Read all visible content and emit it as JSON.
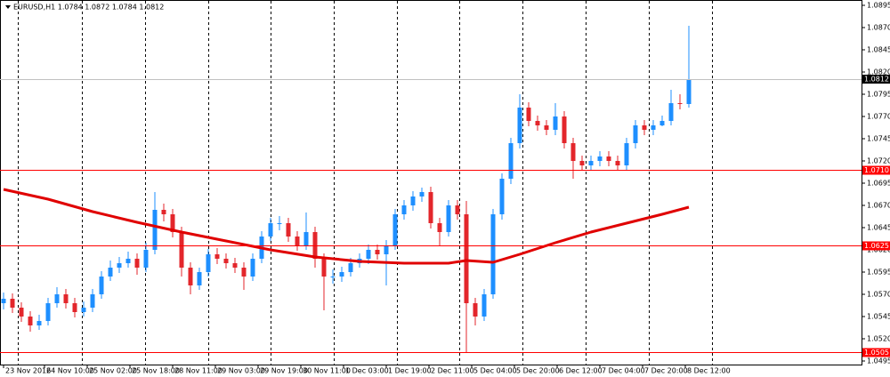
{
  "chart_data": {
    "type": "candlestick",
    "title": "EURUSD,H1  1.0784 1.0872 1.0784 1.0812",
    "xlim": [
      -0.4,
      96.4
    ],
    "ylim": [
      1.0491,
      1.0901
    ],
    "yticks": [
      {
        "value": 1.0895,
        "label": "1.0895"
      },
      {
        "value": 1.087,
        "label": "1.0870"
      },
      {
        "value": 1.0845,
        "label": "1.0845"
      },
      {
        "value": 1.082,
        "label": "1.0820"
      },
      {
        "value": 1.0795,
        "label": "1.0795"
      },
      {
        "value": 1.077,
        "label": "1.0770"
      },
      {
        "value": 1.0745,
        "label": "1.0745"
      },
      {
        "value": 1.072,
        "label": "1.0720"
      },
      {
        "value": 1.0695,
        "label": "1.0695"
      },
      {
        "value": 1.067,
        "label": "1.0670"
      },
      {
        "value": 1.0645,
        "label": "1.0645"
      },
      {
        "value": 1.062,
        "label": "1.0620"
      },
      {
        "value": 1.0595,
        "label": "1.0595"
      },
      {
        "value": 1.057,
        "label": "1.0570"
      },
      {
        "value": 1.0545,
        "label": "1.0545"
      },
      {
        "value": 1.052,
        "label": "1.0520"
      },
      {
        "value": 1.0495,
        "label": "1.0495"
      }
    ],
    "xticks": [
      {
        "value": 0,
        "label": "23 Nov 2016"
      },
      {
        "value": 4.6,
        "label": "24 Nov 10:00"
      },
      {
        "value": 9.4,
        "label": "25 Nov 02:00"
      },
      {
        "value": 14.2,
        "label": "25 Nov 18:00"
      },
      {
        "value": 19,
        "label": "28 Nov 11:00"
      },
      {
        "value": 23.8,
        "label": "29 Nov 03:00"
      },
      {
        "value": 28.6,
        "label": "29 Nov 19:00"
      },
      {
        "value": 33.4,
        "label": "30 Nov 11:00"
      },
      {
        "value": 38.2,
        "label": "1 Dec 03:00"
      },
      {
        "value": 43,
        "label": "1 Dec 19:00"
      },
      {
        "value": 47.8,
        "label": "2 Dec 11:00"
      },
      {
        "value": 52.6,
        "label": "5 Dec 04:00"
      },
      {
        "value": 57.4,
        "label": "5 Dec 20:00"
      },
      {
        "value": 62.2,
        "label": "6 Dec 12:00"
      },
      {
        "value": 67,
        "label": "7 Dec 04:00"
      },
      {
        "value": 71.8,
        "label": "7 Dec 20:00"
      },
      {
        "value": 76.6,
        "label": "8 Dec 12:00"
      }
    ],
    "day_separators": [
      1.6,
      8.8,
      15.9,
      23,
      30,
      37.1,
      44.2,
      51.2,
      58.3,
      65.4,
      72.5,
      79.6
    ],
    "up_color": "#1e8fff",
    "down_color": "#e3262b",
    "open": [
      1.056,
      1.0565,
      1.0555,
      1.0545,
      1.0535,
      1.054,
      1.056,
      1.057,
      1.056,
      1.055,
      1.0555,
      1.057,
      1.059,
      1.06,
      1.0605,
      1.061,
      1.06,
      1.062,
      1.0665,
      1.066,
      1.064,
      1.06,
      1.058,
      1.0595,
      1.0615,
      1.061,
      1.0605,
      1.06,
      1.059,
      1.061,
      1.0635,
      1.065,
      1.065,
      1.0635,
      1.0625,
      1.064,
      1.061,
      1.059,
      1.059,
      1.0595,
      1.0605,
      1.061,
      1.062,
      1.0615,
      1.0625,
      1.066,
      1.067,
      1.068,
      1.0685,
      1.065,
      1.064,
      1.067,
      1.066,
      1.056,
      1.0545,
      1.057,
      1.066,
      1.07,
      1.074,
      1.078,
      1.0765,
      1.076,
      1.0755,
      1.077,
      1.074,
      1.072,
      1.0715,
      1.072,
      1.0725,
      1.072,
      1.0715,
      1.074,
      1.076,
      1.0755,
      1.076,
      1.0765,
      1.0785,
      1.0784
    ],
    "high": [
      1.0572,
      1.0571,
      1.0561,
      1.0551,
      1.0547,
      1.0566,
      1.0578,
      1.0576,
      1.0566,
      1.0562,
      1.0576,
      1.0596,
      1.0608,
      1.0612,
      1.0618,
      1.0616,
      1.0628,
      1.0685,
      1.0672,
      1.0666,
      1.0646,
      1.0606,
      1.06,
      1.0621,
      1.0622,
      1.0616,
      1.0611,
      1.0606,
      1.0616,
      1.0641,
      1.0656,
      1.0658,
      1.0656,
      1.0641,
      1.0662,
      1.0646,
      1.0616,
      1.0598,
      1.0601,
      1.0611,
      1.0616,
      1.0626,
      1.0626,
      1.0631,
      1.0666,
      1.0676,
      1.0686,
      1.069,
      1.0691,
      1.0656,
      1.0676,
      1.0676,
      1.0675,
      1.0566,
      1.0576,
      1.0666,
      1.0706,
      1.0746,
      1.0795,
      1.0786,
      1.0771,
      1.0766,
      1.0785,
      1.0776,
      1.0746,
      1.0726,
      1.0726,
      1.0731,
      1.0731,
      1.0726,
      1.0746,
      1.0766,
      1.0766,
      1.0766,
      1.0771,
      1.08,
      1.0795,
      1.0872
    ],
    "low": [
      1.0553,
      1.0549,
      1.0539,
      1.0528,
      1.053,
      1.0535,
      1.0555,
      1.0554,
      1.0544,
      1.0545,
      1.055,
      1.0565,
      1.0585,
      1.0594,
      1.06,
      1.0592,
      1.0595,
      1.0615,
      1.0652,
      1.0634,
      1.059,
      1.057,
      1.0575,
      1.059,
      1.0604,
      1.0599,
      1.0594,
      1.0575,
      1.0585,
      1.0605,
      1.063,
      1.0642,
      1.0629,
      1.0619,
      1.062,
      1.06,
      1.0552,
      1.0582,
      1.0584,
      1.059,
      1.06,
      1.0604,
      1.0609,
      1.058,
      1.062,
      1.0654,
      1.0664,
      1.0674,
      1.0644,
      1.0625,
      1.0635,
      1.0654,
      1.0505,
      1.0535,
      1.054,
      1.0565,
      1.0654,
      1.0694,
      1.0734,
      1.0759,
      1.0754,
      1.0749,
      1.0749,
      1.0734,
      1.07,
      1.0709,
      1.0709,
      1.0714,
      1.0714,
      1.0709,
      1.071,
      1.0734,
      1.0749,
      1.0749,
      1.0759,
      1.076,
      1.0778,
      1.078
    ],
    "close": [
      1.0565,
      1.0555,
      1.0545,
      1.0535,
      1.054,
      1.056,
      1.057,
      1.056,
      1.055,
      1.0555,
      1.057,
      1.059,
      1.06,
      1.0605,
      1.061,
      1.06,
      1.062,
      1.0665,
      1.066,
      1.064,
      1.06,
      1.058,
      1.0595,
      1.0615,
      1.061,
      1.0605,
      1.06,
      1.059,
      1.061,
      1.0635,
      1.065,
      1.065,
      1.0635,
      1.0625,
      1.064,
      1.061,
      1.059,
      1.059,
      1.0595,
      1.0605,
      1.061,
      1.062,
      1.0615,
      1.0625,
      1.066,
      1.067,
      1.068,
      1.0685,
      1.065,
      1.064,
      1.067,
      1.066,
      1.056,
      1.0545,
      1.057,
      1.066,
      1.07,
      1.074,
      1.078,
      1.0765,
      1.076,
      1.0755,
      1.077,
      1.074,
      1.072,
      1.0715,
      1.072,
      1.0725,
      1.072,
      1.0715,
      1.074,
      1.076,
      1.0755,
      1.076,
      1.0765,
      1.0785,
      1.0784,
      1.0812
    ],
    "moving_average": {
      "color": "#e00000",
      "x": [
        0,
        5,
        10,
        15,
        20,
        25,
        30,
        35,
        40,
        45,
        50,
        52,
        55,
        58,
        62,
        66,
        70,
        74,
        77
      ],
      "values": [
        1.0688,
        1.0677,
        1.0663,
        1.0651,
        1.064,
        1.063,
        1.062,
        1.0612,
        1.0607,
        1.0605,
        1.0605,
        1.0608,
        1.0606,
        1.0615,
        1.0628,
        1.064,
        1.065,
        1.066,
        1.0668
      ]
    },
    "levels": [
      {
        "value": 1.071,
        "label": "1.0710"
      },
      {
        "value": 1.0625,
        "label": "1.0625"
      },
      {
        "value": 1.0505,
        "label": "1.0505"
      }
    ],
    "level_color": "#ff0000",
    "current_price": {
      "value": 1.0812,
      "label": "1.0812"
    },
    "current_color": "#c0c0c0"
  }
}
